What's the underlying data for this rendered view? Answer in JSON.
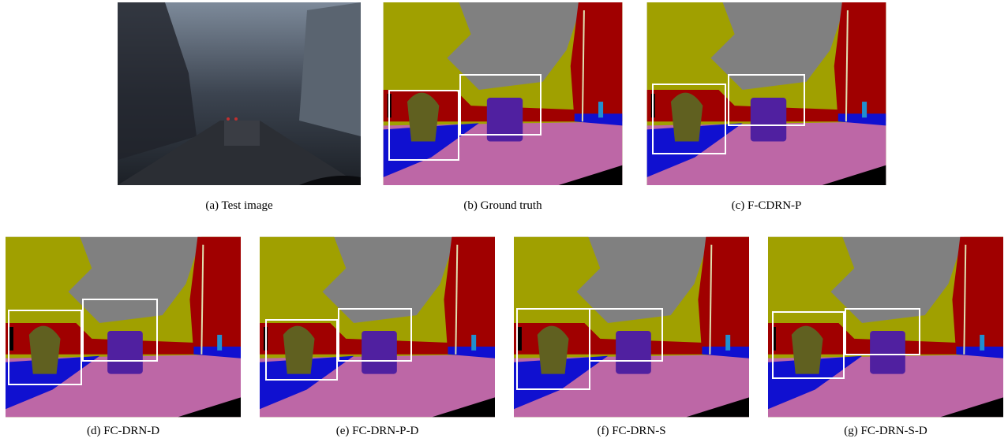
{
  "figure": {
    "panels": [
      {
        "caption": "(a)  Test image"
      },
      {
        "caption": "(b)  Ground truth"
      },
      {
        "caption": "(c)  F-CDRN-P"
      },
      {
        "caption": "(d)  FC-DRN-D"
      },
      {
        "caption": "(e)  FC-DRN-P-D"
      },
      {
        "caption": "(f)  FC-DRN-S"
      },
      {
        "caption": "(g)  FC-DRN-S-D"
      }
    ]
  }
}
